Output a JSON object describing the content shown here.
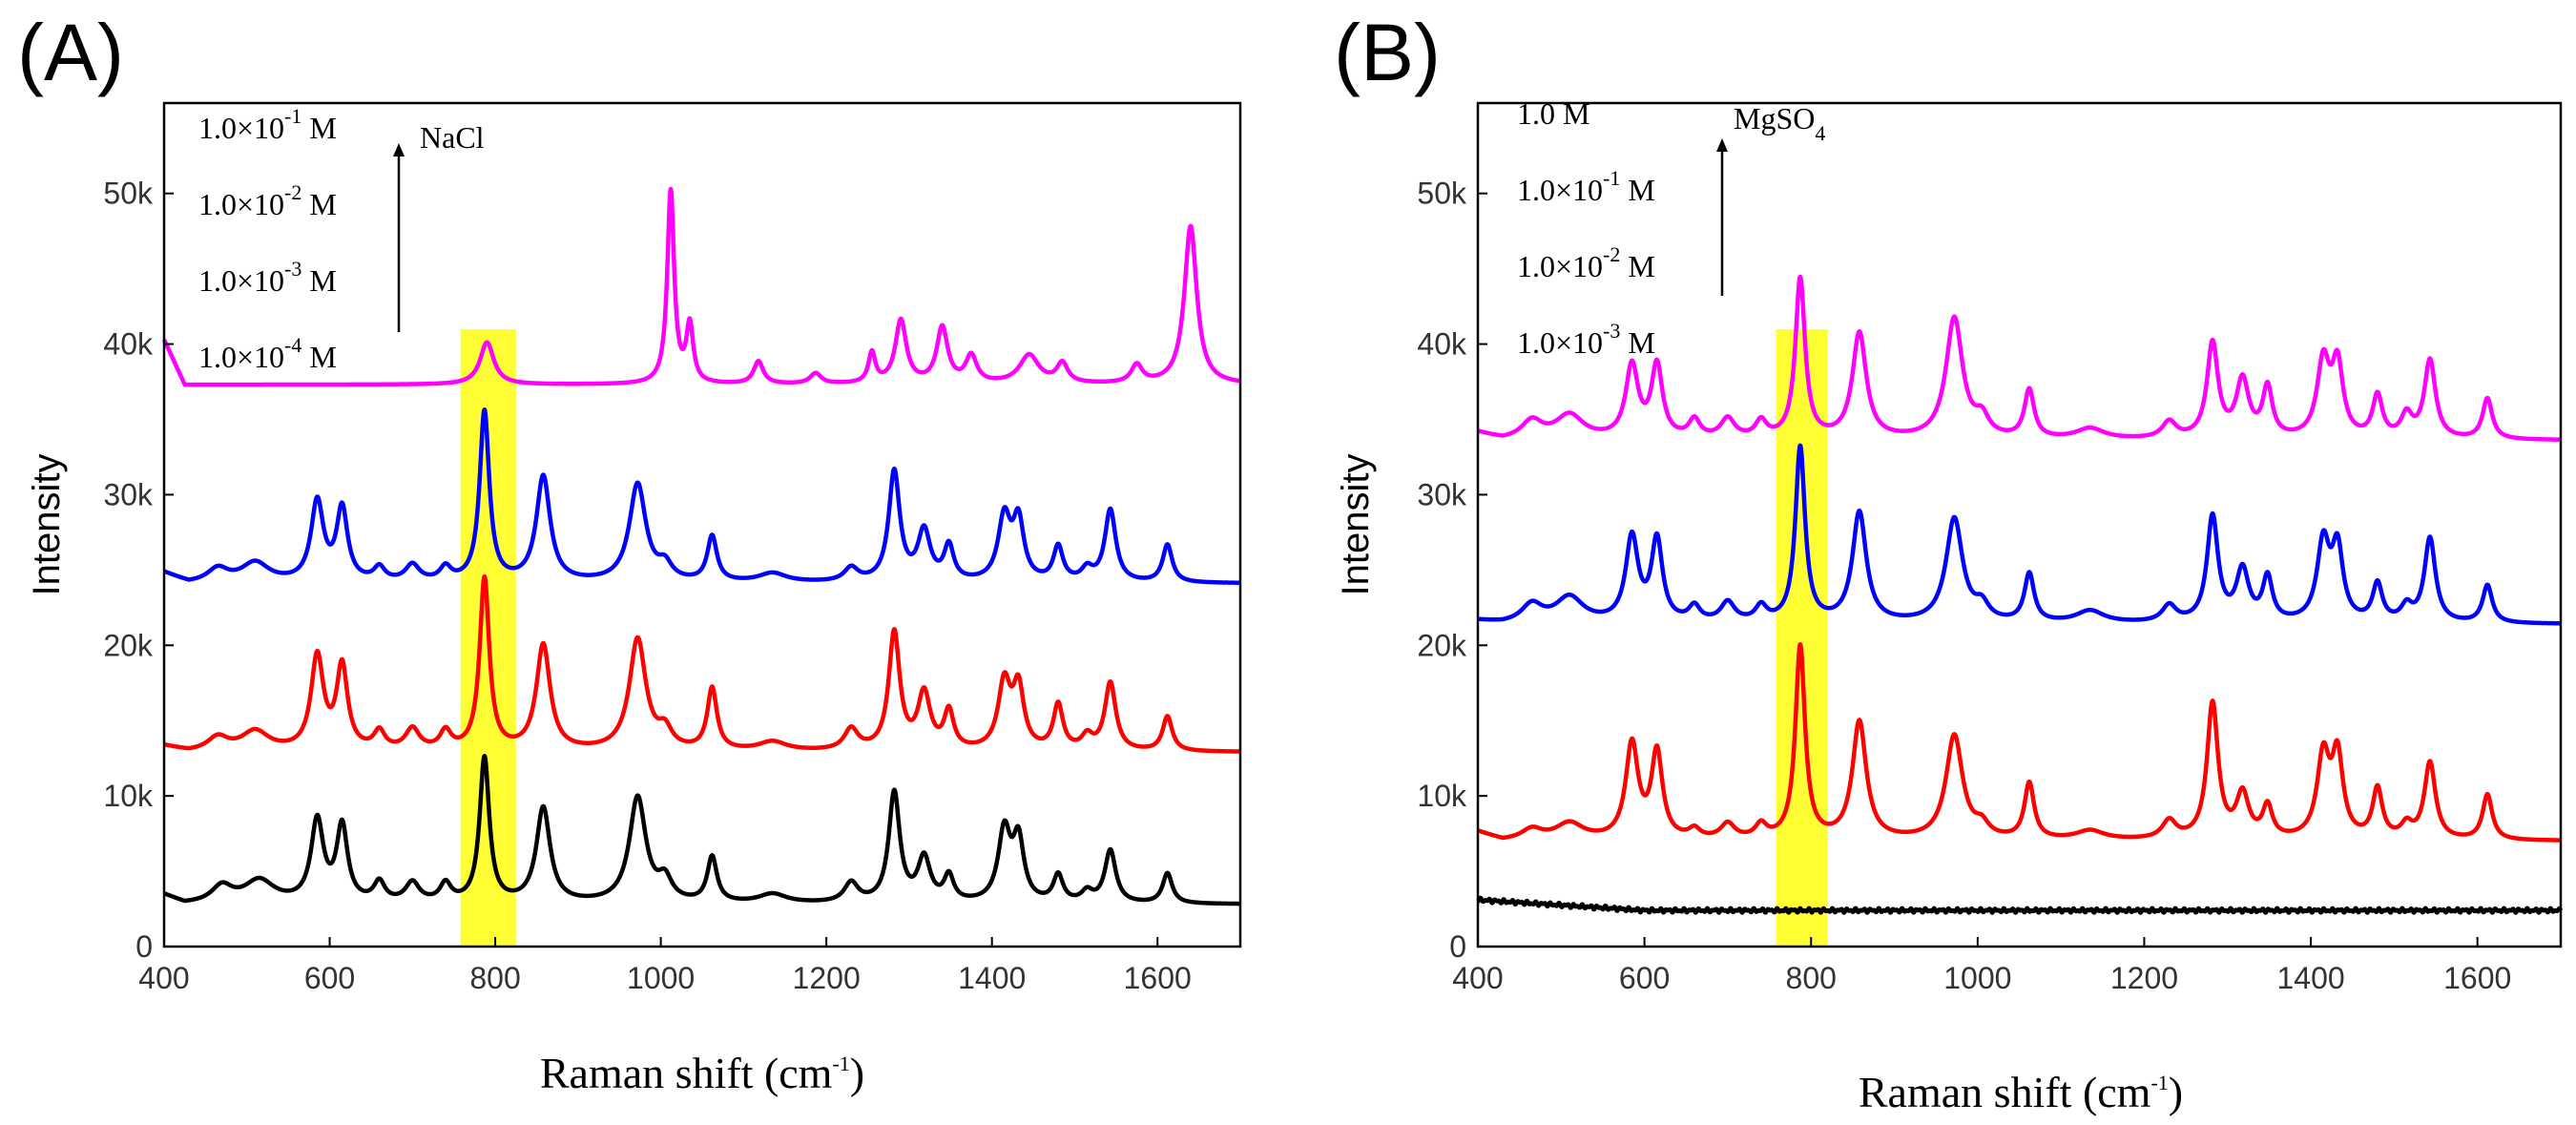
{
  "colors": {
    "magenta": "#ff00ff",
    "blue": "#0000ff",
    "red": "#ff0000",
    "black": "#000000",
    "highlight": "#ffff33"
  },
  "chart_data": [
    {
      "type": "line",
      "panel_label": "(A)",
      "xlabel": "Raman shift (cm",
      "xlabel_sup": "-1",
      "xlabel_close": ")",
      "ylabel": "Intensity",
      "xlim": [
        400,
        1700
      ],
      "ylim": [
        0,
        56000
      ],
      "x_ticks": [
        400,
        600,
        800,
        1000,
        1200,
        1400,
        1600
      ],
      "x_tick_labels": [
        "400",
        "600",
        "800",
        "1000",
        "1200",
        "1400",
        "1600"
      ],
      "y_ticks": [
        0,
        10000,
        20000,
        30000,
        40000,
        50000
      ],
      "y_tick_labels": [
        "0",
        "10k",
        "20k",
        "30k",
        "40k",
        "50k"
      ],
      "highlight_band": [
        758,
        825
      ],
      "legend": {
        "entries": [
          {
            "base": "1.0×10",
            "sup": "-1",
            "unit": " M"
          },
          {
            "base": "1.0×10",
            "sup": "-2",
            "unit": " M"
          },
          {
            "base": "1.0×10",
            "sup": "-3",
            "unit": " M"
          },
          {
            "base": "1.0×10",
            "sup": "-4",
            "unit": " M"
          }
        ],
        "arrow_label": "NaCl",
        "arrow_label_sub": ""
      },
      "series": [
        {
          "name": "1.0×10^-4 M",
          "color": "#ff00ff",
          "baseline": 35800,
          "start": [
            [
              400,
              4500
            ],
            [
              425,
              1500
            ]
          ],
          "peaks": [
            [
              790,
              2800,
              10
            ],
            [
              1012,
              12800,
              5
            ],
            [
              1035,
              3800,
              5
            ],
            [
              1118,
              1500,
              7
            ],
            [
              1187,
              700,
              8
            ],
            [
              1255,
              2000,
              5
            ],
            [
              1290,
              4200,
              8
            ],
            [
              1340,
              3700,
              8
            ],
            [
              1375,
              1800,
              8
            ],
            [
              1445,
              1900,
              14
            ],
            [
              1485,
              1300,
              8
            ],
            [
              1575,
              1200,
              8
            ],
            [
              1640,
              10500,
              9
            ]
          ]
        },
        {
          "name": "1.0×10^-3 M",
          "color": "#0000ff",
          "baseline": 23300,
          "start": [
            [
              400,
              1500
            ],
            [
              430,
              800
            ]
          ],
          "peaks": [
            [
              465,
              900,
              15
            ],
            [
              510,
              1300,
              20
            ],
            [
              585,
              5300,
              9
            ],
            [
              615,
              4800,
              8
            ],
            [
              660,
              900,
              8
            ],
            [
              700,
              1100,
              10
            ],
            [
              740,
              900,
              8
            ],
            [
              787,
              11300,
              7
            ],
            [
              858,
              7000,
              10
            ],
            [
              972,
              6500,
              12
            ],
            [
              1005,
              1000,
              10
            ],
            [
              1062,
              3000,
              7
            ],
            [
              1135,
              600,
              20
            ],
            [
              1230,
              900,
              10
            ],
            [
              1282,
              7300,
              8
            ],
            [
              1318,
              3300,
              9
            ],
            [
              1348,
              2300,
              7
            ],
            [
              1415,
              4200,
              9
            ],
            [
              1432,
              3900,
              8
            ],
            [
              1480,
              2300,
              7
            ],
            [
              1515,
              800,
              8
            ],
            [
              1543,
              4800,
              8
            ],
            [
              1612,
              2500,
              7
            ]
          ]
        },
        {
          "name": "1.0×10^-2 M",
          "color": "#ff0000",
          "baseline": 12100,
          "start": [
            [
              400,
              1200
            ],
            [
              430,
              800
            ]
          ],
          "peaks": [
            [
              465,
              900,
              15
            ],
            [
              510,
              1300,
              20
            ],
            [
              585,
              6200,
              9
            ],
            [
              615,
              5500,
              8
            ],
            [
              660,
              1200,
              8
            ],
            [
              700,
              1400,
              10
            ],
            [
              740,
              1200,
              8
            ],
            [
              787,
              11400,
              7
            ],
            [
              858,
              7000,
              10
            ],
            [
              972,
              7400,
              12
            ],
            [
              1005,
              1200,
              10
            ],
            [
              1062,
              4100,
              7
            ],
            [
              1135,
              600,
              20
            ],
            [
              1230,
              1400,
              10
            ],
            [
              1282,
              7800,
              8
            ],
            [
              1318,
              3700,
              9
            ],
            [
              1348,
              2500,
              7
            ],
            [
              1415,
              4400,
              9
            ],
            [
              1432,
              4000,
              8
            ],
            [
              1480,
              3000,
              7
            ],
            [
              1515,
              900,
              8
            ],
            [
              1543,
              4500,
              8
            ],
            [
              1612,
              2300,
              7
            ]
          ]
        },
        {
          "name": "1.0×10^-1 M",
          "color": "#000000",
          "baseline": 2000,
          "start": [
            [
              400,
              1400
            ],
            [
              425,
              800
            ]
          ],
          "peaks": [
            [
              470,
              1100,
              15
            ],
            [
              515,
              1500,
              22
            ],
            [
              585,
              5400,
              9
            ],
            [
              615,
              5000,
              8
            ],
            [
              660,
              1300,
              8
            ],
            [
              700,
              1300,
              10
            ],
            [
              740,
              1200,
              8
            ],
            [
              787,
              9600,
              7
            ],
            [
              858,
              6300,
              10
            ],
            [
              972,
              7000,
              12
            ],
            [
              1005,
              1400,
              10
            ],
            [
              1062,
              3000,
              7
            ],
            [
              1135,
              600,
              20
            ],
            [
              1230,
              1300,
              10
            ],
            [
              1282,
              7300,
              8
            ],
            [
              1318,
              2900,
              9
            ],
            [
              1348,
              1700,
              7
            ],
            [
              1415,
              4700,
              9
            ],
            [
              1432,
              4000,
              8
            ],
            [
              1480,
              1800,
              7
            ],
            [
              1515,
              700,
              8
            ],
            [
              1543,
              3500,
              8
            ],
            [
              1612,
              2000,
              7
            ]
          ]
        }
      ]
    },
    {
      "type": "line",
      "panel_label": "(B)",
      "xlabel": "Raman shift (cm",
      "xlabel_sup": "-1",
      "xlabel_close": ")",
      "ylabel": "Intensity",
      "xlim": [
        400,
        1700
      ],
      "ylim": [
        0,
        56000
      ],
      "x_ticks": [
        400,
        600,
        800,
        1000,
        1200,
        1400,
        1600
      ],
      "x_tick_labels": [
        "400",
        "600",
        "800",
        "1000",
        "1200",
        "1400",
        "1600"
      ],
      "y_ticks": [
        0,
        10000,
        20000,
        30000,
        40000,
        50000
      ],
      "y_tick_labels": [
        "0",
        "10k",
        "20k",
        "30k",
        "40k",
        "50k"
      ],
      "highlight_band": [
        758,
        820
      ],
      "legend": {
        "entries": [
          {
            "base": "1.0 M",
            "sup": "",
            "unit": ""
          },
          {
            "base": "1.0×10",
            "sup": "-1",
            "unit": " M"
          },
          {
            "base": "1.0×10",
            "sup": "-2",
            "unit": " M"
          },
          {
            "base": "1.0×10",
            "sup": "-3",
            "unit": " M"
          }
        ],
        "arrow_label": "MgSO",
        "arrow_label_sub": "4"
      },
      "series": [
        {
          "name": "1.0×10^-3 M",
          "color": "#ff00ff",
          "baseline": 32900,
          "start": [
            [
              400,
              1200
            ],
            [
              430,
              700
            ]
          ],
          "peaks": [
            [
              465,
              1200,
              15
            ],
            [
              510,
              1600,
              20
            ],
            [
              585,
              4800,
              9
            ],
            [
              615,
              4800,
              8
            ],
            [
              660,
              1200,
              8
            ],
            [
              700,
              1300,
              10
            ],
            [
              740,
              1100,
              8
            ],
            [
              787,
              10600,
              7
            ],
            [
              858,
              7000,
              10
            ],
            [
              972,
              8000,
              12
            ],
            [
              1005,
              1200,
              10
            ],
            [
              1062,
              3200,
              7
            ],
            [
              1135,
              700,
              20
            ],
            [
              1230,
              1100,
              10
            ],
            [
              1282,
              6300,
              8
            ],
            [
              1318,
              3800,
              9
            ],
            [
              1348,
              3300,
              7
            ],
            [
              1415,
              5000,
              9
            ],
            [
              1432,
              4700,
              8
            ],
            [
              1480,
              2800,
              7
            ],
            [
              1515,
              1500,
              8
            ],
            [
              1543,
              5200,
              8
            ],
            [
              1612,
              2700,
              7
            ]
          ]
        },
        {
          "name": "1.0×10^-2 M",
          "color": "#0000ff",
          "baseline": 20600,
          "start": [
            [
              400,
              1000
            ],
            [
              430,
              800
            ]
          ],
          "peaks": [
            [
              465,
              1200,
              15
            ],
            [
              510,
              1700,
              20
            ],
            [
              585,
              5600,
              9
            ],
            [
              615,
              5400,
              8
            ],
            [
              660,
              1000,
              8
            ],
            [
              700,
              1300,
              10
            ],
            [
              740,
              1000,
              8
            ],
            [
              787,
              11600,
              7
            ],
            [
              858,
              7300,
              10
            ],
            [
              972,
              6900,
              12
            ],
            [
              1005,
              1000,
              10
            ],
            [
              1062,
              3200,
              7
            ],
            [
              1135,
              800,
              20
            ],
            [
              1230,
              1100,
              10
            ],
            [
              1282,
              7000,
              8
            ],
            [
              1318,
              3400,
              9
            ],
            [
              1348,
              2900,
              7
            ],
            [
              1415,
              5200,
              9
            ],
            [
              1432,
              4700,
              8
            ],
            [
              1480,
              2500,
              7
            ],
            [
              1515,
              1000,
              8
            ],
            [
              1543,
              5600,
              8
            ],
            [
              1612,
              2500,
              7
            ]
          ]
        },
        {
          "name": "1.0×10^-1 M",
          "color": "#ff0000",
          "baseline": 6400,
          "start": [
            [
              400,
              1200
            ],
            [
              430,
              600
            ]
          ],
          "peaks": [
            [
              465,
              700,
              15
            ],
            [
              510,
              1100,
              20
            ],
            [
              585,
              6300,
              9
            ],
            [
              615,
              5700,
              8
            ],
            [
              660,
              600,
              8
            ],
            [
              700,
              1000,
              10
            ],
            [
              740,
              900,
              8
            ],
            [
              787,
              12800,
              7
            ],
            [
              858,
              7800,
              10
            ],
            [
              972,
              6900,
              12
            ],
            [
              1005,
              800,
              10
            ],
            [
              1062,
              3700,
              7
            ],
            [
              1135,
              600,
              20
            ],
            [
              1230,
              1200,
              10
            ],
            [
              1282,
              9000,
              8
            ],
            [
              1318,
              2900,
              9
            ],
            [
              1348,
              2100,
              7
            ],
            [
              1415,
              5400,
              9
            ],
            [
              1432,
              5300,
              8
            ],
            [
              1480,
              3300,
              7
            ],
            [
              1515,
              900,
              8
            ],
            [
              1543,
              5100,
              8
            ],
            [
              1612,
              3000,
              7
            ]
          ]
        },
        {
          "name": "1.0 M",
          "color": "#000000",
          "baseline": 2400,
          "start": [
            [
              400,
              700
            ],
            [
              600,
              0
            ]
          ],
          "peaks": []
        }
      ]
    }
  ]
}
